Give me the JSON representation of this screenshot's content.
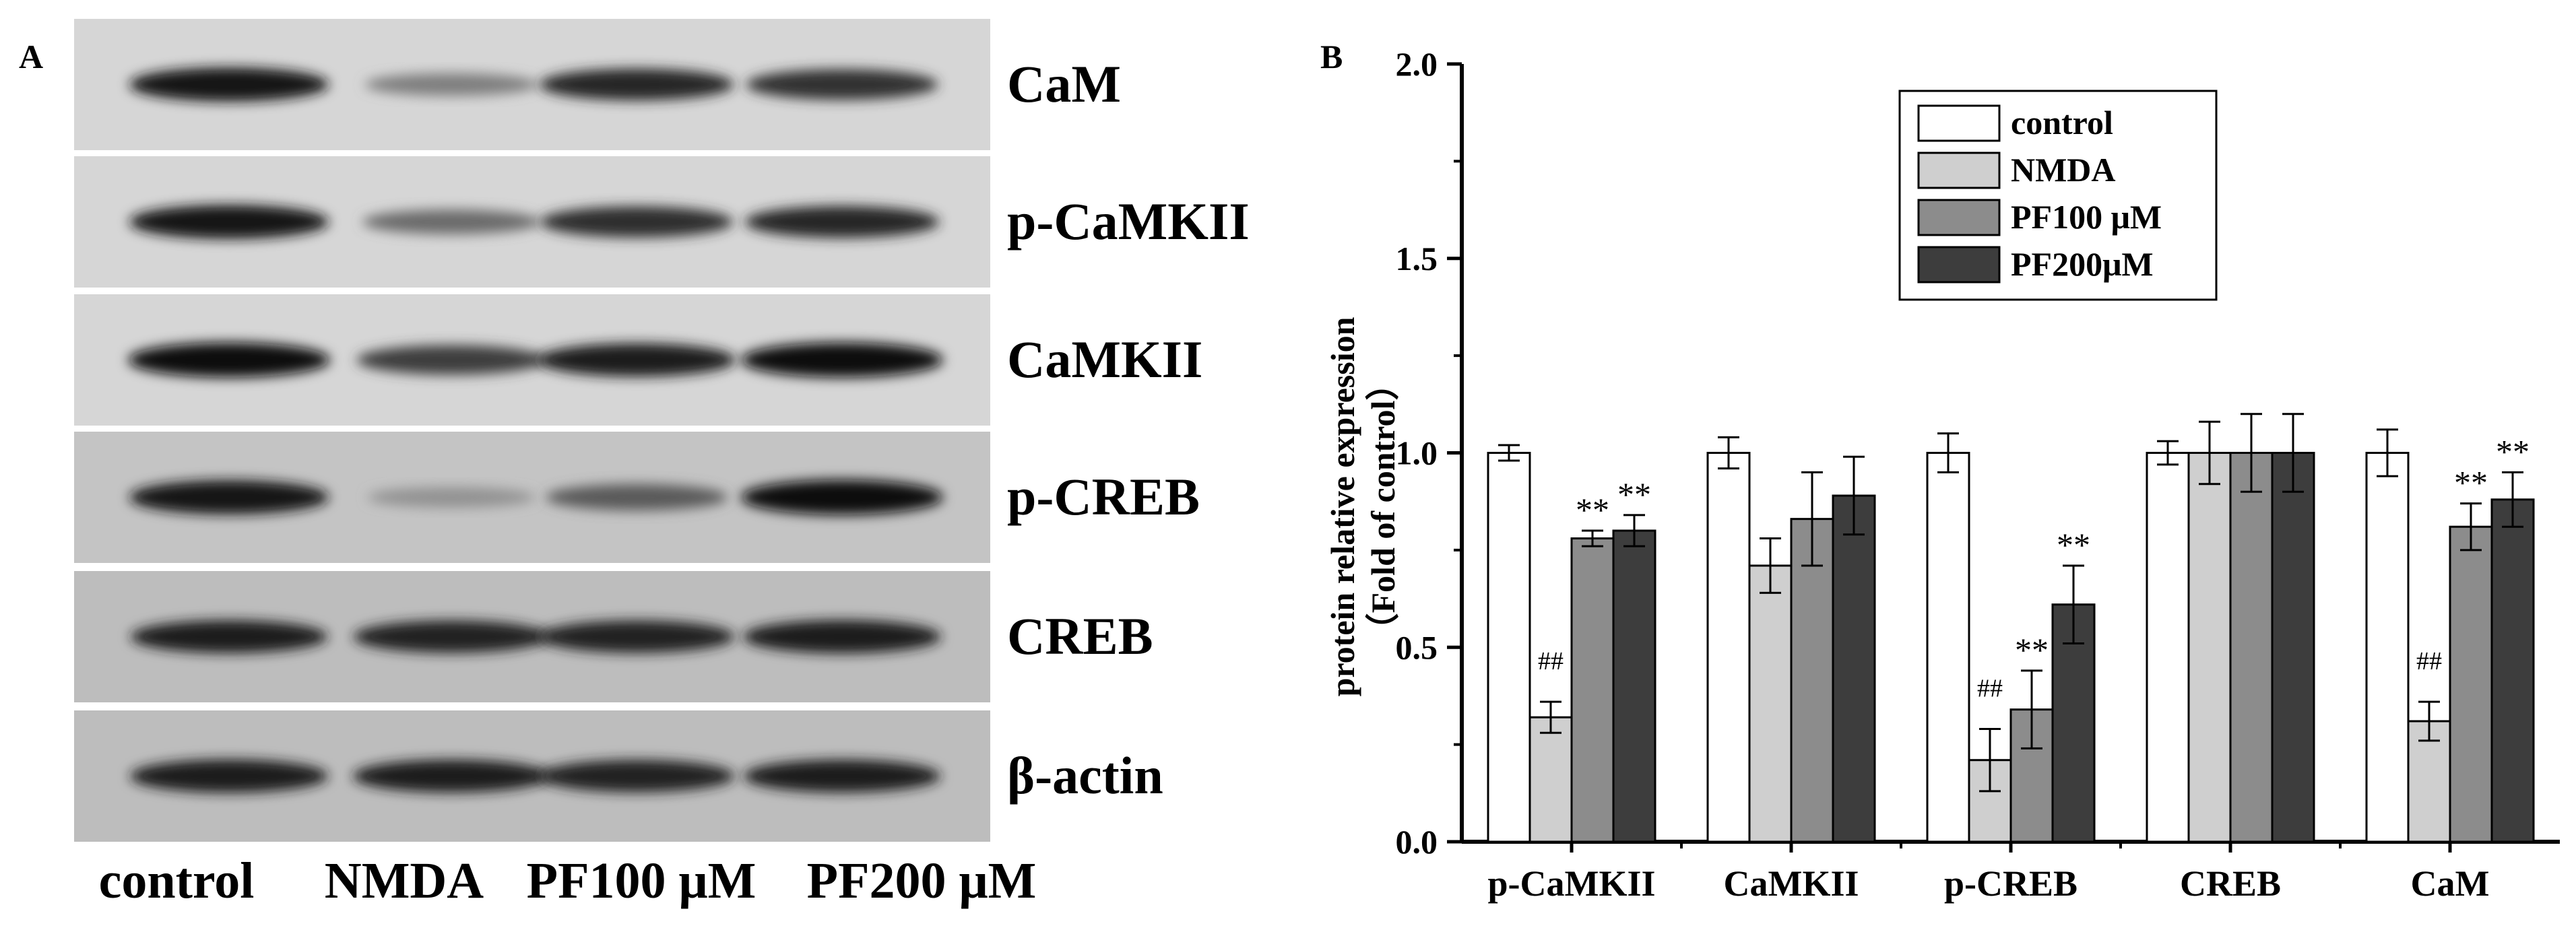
{
  "panel_a": {
    "letter": "A",
    "blots": [
      {
        "label": "CaM",
        "intensity": [
          0.95,
          0.42,
          0.85,
          0.8
        ]
      },
      {
        "label": "p-CaMKII",
        "intensity": [
          0.95,
          0.52,
          0.82,
          0.85
        ]
      },
      {
        "label": "CaMKII",
        "intensity": [
          1.0,
          0.75,
          0.92,
          1.0
        ]
      },
      {
        "label": "p-CREB",
        "intensity": [
          0.95,
          0.32,
          0.6,
          1.0
        ]
      },
      {
        "label": "CREB",
        "intensity": [
          0.9,
          0.88,
          0.88,
          0.92
        ]
      },
      {
        "label": "β-actin",
        "intensity": [
          0.92,
          0.9,
          0.88,
          0.9
        ]
      }
    ],
    "lanes": [
      "control",
      "NMDA",
      "PF100 μM",
      "PF200 μM"
    ]
  },
  "panel_b": {
    "letter": "B"
  },
  "chart_data": {
    "type": "bar",
    "ylabel_line1": "protein relative expression",
    "ylabel_line2": "（Fold of control）",
    "ylim": [
      0.0,
      2.0
    ],
    "yticks": [
      "0.0",
      "0.5",
      "1.0",
      "1.5",
      "2.0"
    ],
    "categories": [
      "p-CaMKII",
      "CaMKII",
      "p-CREB",
      "CREB",
      "CaM"
    ],
    "legend_position": "top-center",
    "series": [
      {
        "name": "control",
        "color": "#ffffff",
        "values": [
          1.0,
          1.0,
          1.0,
          1.0,
          1.0
        ],
        "errors": [
          0.02,
          0.04,
          0.05,
          0.03,
          0.06
        ],
        "annotations": [
          "",
          "",
          "",
          "",
          ""
        ]
      },
      {
        "name": "NMDA",
        "color": "#cfcfcf",
        "values": [
          0.32,
          0.71,
          0.21,
          1.0,
          0.31
        ],
        "errors": [
          0.04,
          0.07,
          0.08,
          0.08,
          0.05
        ],
        "annotations": [
          "##",
          "",
          "##",
          "",
          "##"
        ]
      },
      {
        "name": "PF100 μM",
        "color": "#8c8c8c",
        "values": [
          0.78,
          0.83,
          0.34,
          1.0,
          0.81
        ],
        "errors": [
          0.02,
          0.12,
          0.1,
          0.1,
          0.06
        ],
        "annotations": [
          "**",
          "",
          "**",
          "",
          "**"
        ]
      },
      {
        "name": "PF200μM",
        "color": "#3d3d3d",
        "values": [
          0.8,
          0.89,
          0.61,
          1.0,
          0.88
        ],
        "errors": [
          0.04,
          0.1,
          0.1,
          0.1,
          0.07
        ],
        "annotations": [
          "**",
          "",
          "**",
          "",
          "**"
        ]
      }
    ]
  }
}
